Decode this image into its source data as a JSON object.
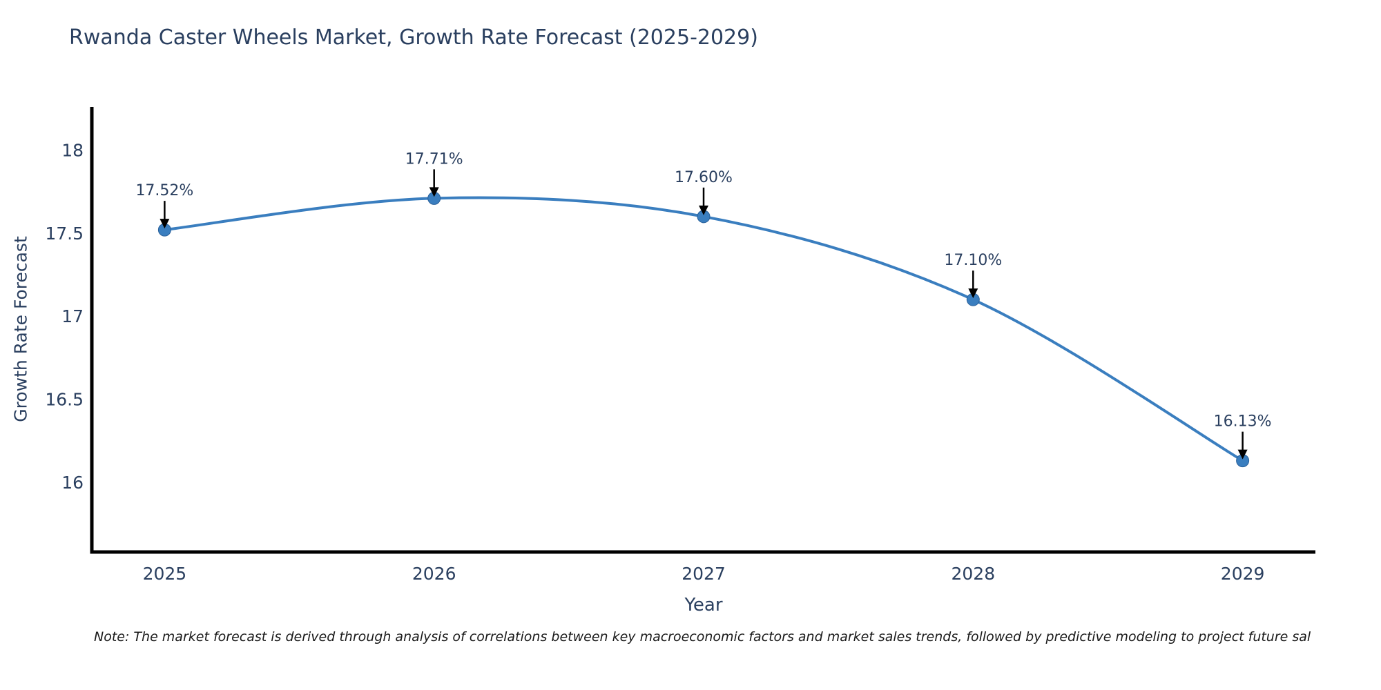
{
  "chart_data": {
    "type": "line",
    "title": "Rwanda Caster Wheels Market, Growth Rate Forecast (2025-2029)",
    "xlabel": "Year",
    "ylabel": "Growth Rate Forecast",
    "x": [
      2025,
      2026,
      2027,
      2028,
      2029
    ],
    "values": [
      17.52,
      17.71,
      17.6,
      17.1,
      16.13
    ],
    "point_labels": [
      "17.52%",
      "17.71%",
      "17.60%",
      "17.10%",
      "16.13%"
    ],
    "x_tick_labels": [
      "2025",
      "2026",
      "2027",
      "2028",
      "2029"
    ],
    "y_tick_values": [
      18,
      17.5,
      17,
      16.5,
      16
    ],
    "y_tick_labels": [
      "18",
      "17.5",
      "17",
      "16.5",
      "16"
    ],
    "xlim": [
      2024.73,
      2029.27
    ],
    "ylim": [
      15.58,
      18.26
    ],
    "grid": false,
    "legend": "none",
    "line_color": "#3a7ebf",
    "marker_color": "#3a7ebf",
    "marker_edge_color": "#2a6099",
    "annotation_arrow_color": "#000000",
    "axis_color": "#000000",
    "text_color": "#2a3f5f",
    "note": "Note: The market forecast is derived through analysis of correlations between key macroeconomic factors and market sales trends, followed by predictive modeling to project future sal"
  }
}
